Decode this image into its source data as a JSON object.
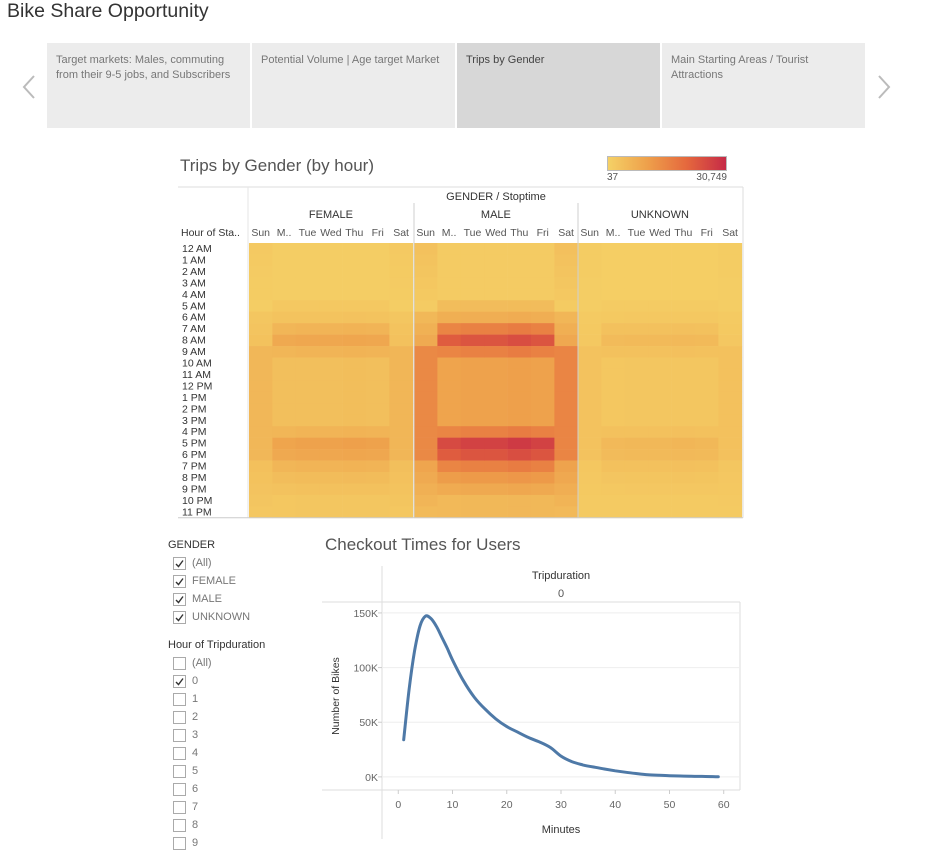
{
  "story": {
    "title": "Bike Share Opportunity",
    "points": [
      {
        "label": "Target markets:  Males, commuting from their 9-5 jobs, and Subscribers",
        "active": false
      },
      {
        "label": "Potential Volume | Age target Market",
        "active": false
      },
      {
        "label": "Trips by Gender",
        "active": true
      },
      {
        "label": "Main Starting Areas / Tourist Attractions",
        "active": false
      }
    ]
  },
  "icons": {
    "prev": "chevron-left-icon",
    "next": "chevron-right-icon",
    "check": "checkmark-icon"
  },
  "colors": {
    "low": "#f5d166",
    "mid": "#eea04b",
    "high": "#e5683d",
    "max": "#c62a47",
    "line": "#4e79a7"
  },
  "heatmap": {
    "title": "Trips by Gender (by hour)",
    "legend_min": "37",
    "legend_max": "30,749",
    "column_header": "GENDER / Stoptime",
    "row_header": "Hour of Sta..",
    "genders": [
      "FEMALE",
      "MALE",
      "UNKNOWN"
    ],
    "days": [
      "Sun",
      "M..",
      "Tue",
      "Wed",
      "Thu",
      "Fri",
      "Sat"
    ],
    "hours": [
      "12 AM",
      "1 AM",
      "2 AM",
      "3 AM",
      "4 AM",
      "5 AM",
      "6 AM",
      "7 AM",
      "8 AM",
      "9 AM",
      "10 AM",
      "11 AM",
      "12 PM",
      "1 PM",
      "2 PM",
      "3 PM",
      "4 PM",
      "5 PM",
      "6 PM",
      "7 PM",
      "8 PM",
      "9 PM",
      "10 PM",
      "11 PM"
    ]
  },
  "filters": {
    "gender_title": "GENDER",
    "gender_items": [
      {
        "label": "(All)",
        "checked": true
      },
      {
        "label": "FEMALE",
        "checked": true
      },
      {
        "label": "MALE",
        "checked": true
      },
      {
        "label": "UNKNOWN",
        "checked": true
      }
    ],
    "hour_title": "Hour of Tripduration",
    "hour_items": [
      {
        "label": "(All)",
        "checked": false
      },
      {
        "label": "0",
        "checked": true
      },
      {
        "label": "1",
        "checked": false
      },
      {
        "label": "2",
        "checked": false
      },
      {
        "label": "3",
        "checked": false
      },
      {
        "label": "4",
        "checked": false
      },
      {
        "label": "5",
        "checked": false
      },
      {
        "label": "6",
        "checked": false
      },
      {
        "label": "7",
        "checked": false
      },
      {
        "label": "8",
        "checked": false
      },
      {
        "label": "9",
        "checked": false
      }
    ]
  },
  "chart_data": {
    "type": "line",
    "title": "Checkout Times for Users",
    "header_label": "Tripduration",
    "header_value": "0",
    "xlabel": "Minutes",
    "ylabel": "Number of Bikes",
    "xlim": [
      -3,
      63
    ],
    "ylim": [
      -12000,
      160000
    ],
    "x_ticks": [
      0,
      10,
      20,
      30,
      40,
      50,
      60
    ],
    "y_ticks": [
      0,
      50000,
      100000,
      150000
    ],
    "y_tick_labels": [
      "0K",
      "50K",
      "100K",
      "150K"
    ],
    "series": [
      {
        "x": [
          1,
          2,
          3,
          4,
          5,
          6,
          7,
          8,
          9,
          10,
          12,
          14,
          16,
          18,
          20,
          22,
          24,
          26,
          28,
          30,
          32,
          34,
          36,
          38,
          40,
          42,
          44,
          46,
          48,
          50,
          52,
          54,
          56,
          58,
          59
        ],
        "values": [
          34000,
          80000,
          115000,
          138000,
          147000,
          145000,
          138000,
          128000,
          118000,
          107000,
          88000,
          73000,
          62000,
          53000,
          46000,
          41000,
          36000,
          32000,
          27000,
          19000,
          14000,
          11000,
          9000,
          7200,
          5600,
          4200,
          3000,
          2000,
          1500,
          1100,
          800,
          600,
          400,
          250,
          150
        ]
      }
    ]
  }
}
